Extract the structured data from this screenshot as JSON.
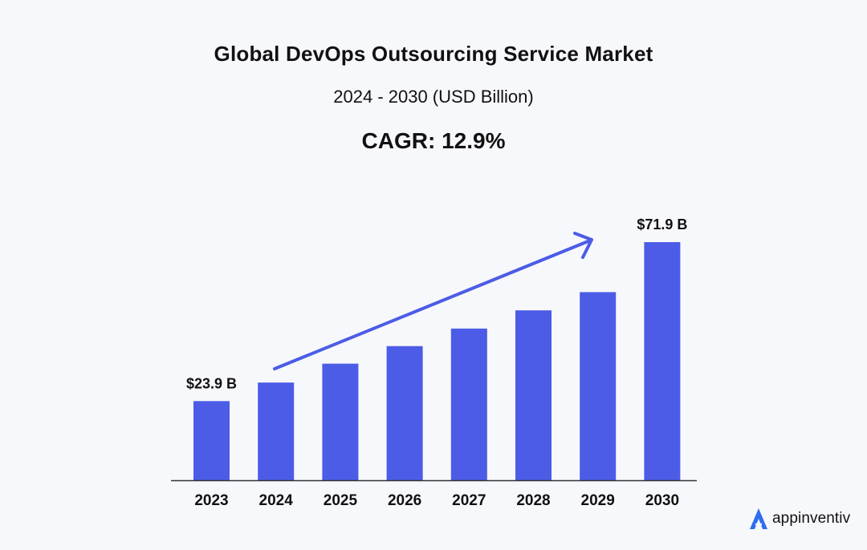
{
  "header": {
    "title": "Global DevOps Outsourcing Service Market",
    "subtitle": "2024 - 2030 (USD Billion)",
    "cagr": "CAGR: 12.9%"
  },
  "logo": {
    "text": "appinventiv"
  },
  "colors": {
    "bar": "#4c5ce6",
    "arrow": "#4c5ce6",
    "axis": "#333333"
  },
  "chart_data": {
    "type": "bar",
    "categories": [
      "2023",
      "2024",
      "2025",
      "2026",
      "2027",
      "2028",
      "2029",
      "2030"
    ],
    "values": [
      23.9,
      29.5,
      35.2,
      40.5,
      45.8,
      51.3,
      56.8,
      71.9
    ],
    "data_labels": [
      {
        "index": 0,
        "text": "$23.9 B"
      },
      {
        "index": 7,
        "text": "$71.9 B"
      }
    ],
    "title": "Global DevOps Outsourcing Service Market",
    "xlabel": "",
    "ylabel": "",
    "ylim": [
      0,
      75
    ],
    "grid": false,
    "annotations": [
      {
        "type": "trend-arrow",
        "from_index": 1,
        "to_index": 6
      }
    ]
  }
}
